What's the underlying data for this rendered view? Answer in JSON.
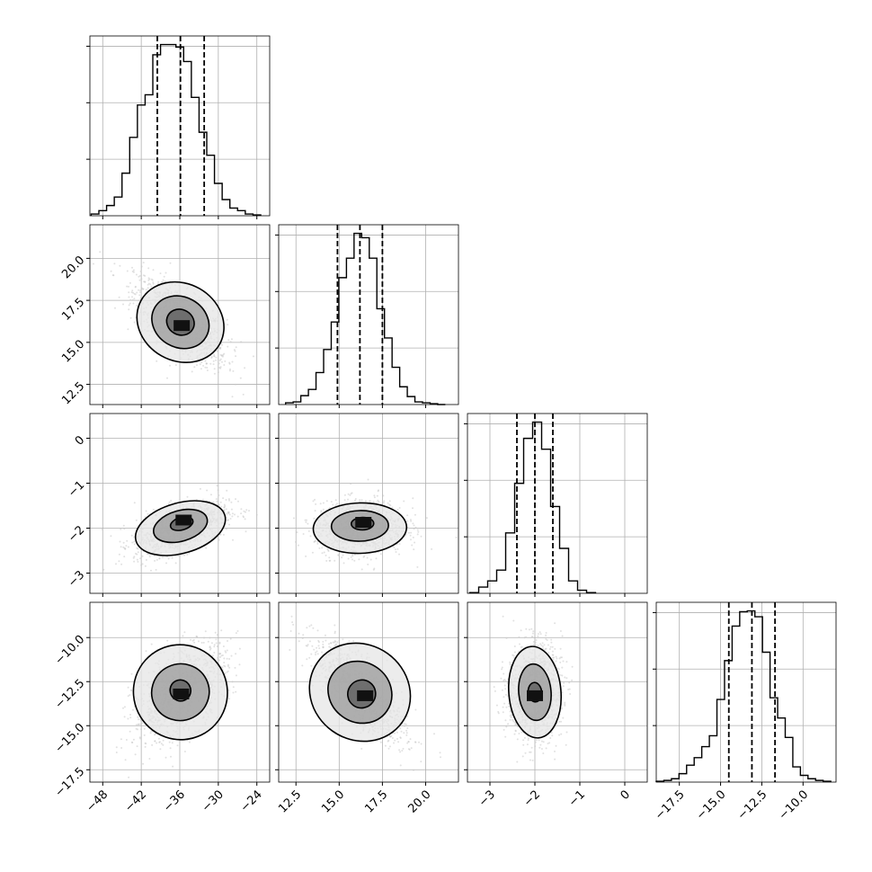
{
  "chart_data": {
    "type": "corner",
    "grid": true,
    "colors": {
      "line": "#000000",
      "grid": "#b0b0b0",
      "scatter": "#c8c8c8"
    },
    "parameters": [
      {
        "ticks": [
          -48,
          -42,
          -36,
          -30,
          -24
        ],
        "tick_labels": [
          "−48",
          "−42",
          "−36",
          "−30",
          "−24"
        ],
        "range": [
          -50,
          -22
        ],
        "quantiles": [
          -39.5,
          -35.9,
          -32.2
        ],
        "histogram": {
          "edges": [
            -49.8,
            -48.6,
            -47.4,
            -46.2,
            -45.0,
            -43.8,
            -42.6,
            -41.4,
            -40.2,
            -39.0,
            -37.8,
            -36.6,
            -35.4,
            -34.2,
            -33.0,
            -31.8,
            -30.6,
            -29.4,
            -28.2,
            -27.0,
            -25.8,
            -24.6,
            -23.4
          ],
          "counts": [
            2,
            6,
            12,
            22,
            50,
            92,
            130,
            142,
            189,
            201,
            201,
            198,
            181,
            139,
            98,
            71,
            38,
            19,
            9,
            6,
            2,
            1
          ]
        }
      },
      {
        "ticks": [
          12.5,
          15.0,
          17.5,
          20.0
        ],
        "tick_labels": [
          "12.5",
          "15.0",
          "17.5",
          "20.0"
        ],
        "range": [
          11.5,
          21.9
        ],
        "quantiles": [
          14.9,
          16.2,
          17.5
        ],
        "histogram": {
          "edges": [
            11.9,
            12.34,
            12.78,
            13.22,
            13.66,
            14.1,
            14.54,
            14.98,
            15.42,
            15.86,
            16.3,
            16.74,
            17.18,
            17.62,
            18.06,
            18.5,
            18.94,
            19.38,
            19.82,
            20.26,
            20.7,
            21.14
          ],
          "counts": [
            2,
            3,
            10,
            17,
            36,
            62,
            93,
            143,
            165,
            193,
            188,
            165,
            108,
            75,
            42,
            20,
            9,
            3,
            2,
            1,
            0
          ]
        }
      },
      {
        "ticks": [
          -3,
          -2,
          -1,
          0
        ],
        "tick_labels": [
          "−3",
          "−2",
          "−1",
          "0"
        ],
        "range": [
          -3.5,
          0.5
        ],
        "quantiles": [
          -2.4,
          -2.0,
          -1.6
        ],
        "histogram": {
          "edges": [
            -3.45,
            -3.25,
            -3.05,
            -2.85,
            -2.65,
            -2.45,
            -2.25,
            -2.05,
            -1.85,
            -1.65,
            -1.45,
            -1.25,
            -1.05,
            -0.85,
            -0.65
          ],
          "counts": [
            1,
            8,
            16,
            30,
            78,
            142,
            200,
            221,
            186,
            112,
            58,
            16,
            4,
            1
          ]
        }
      },
      {
        "ticks": [
          -17.5,
          -15.0,
          -12.5,
          -10.0
        ],
        "tick_labels": [
          "−17.5",
          "−15.0",
          "−12.5",
          "−10.0"
        ],
        "range": [
          -18.9,
          -8.0
        ],
        "quantiles": [
          -14.5,
          -13.1,
          -11.7
        ],
        "histogram": {
          "edges": [
            -18.9,
            -18.44,
            -17.98,
            -17.52,
            -17.06,
            -16.6,
            -16.14,
            -15.68,
            -15.22,
            -14.76,
            -14.3,
            -13.84,
            -13.38,
            -12.92,
            -12.46,
            -12.0,
            -11.54,
            -11.08,
            -10.62,
            -10.16,
            -9.7,
            -9.24,
            -8.78,
            -8.32
          ],
          "counts": [
            1,
            2,
            4,
            10,
            20,
            29,
            42,
            55,
            98,
            144,
            185,
            202,
            203,
            196,
            154,
            100,
            76,
            53,
            18,
            8,
            4,
            2,
            1
          ]
        }
      }
    ],
    "row_ranges": {
      "1": [
        11.3,
        22.0
      ],
      "2": [
        -3.45,
        0.55
      ],
      "3": [
        -18.2,
        -8.0
      ]
    },
    "pairs": [
      {
        "x": 0,
        "y": 1,
        "mean": [
          -35.9,
          16.2
        ],
        "sd": [
          3.6,
          1.3
        ],
        "rho": -0.68,
        "density_peak": [
          -35.7,
          16.0
        ],
        "levels": [
          {
            "center": [
              -35.9,
              16.2
            ],
            "rx": 2.2,
            "ry": 0.75
          },
          {
            "center": [
              -35.9,
              16.2
            ],
            "rx": 4.6,
            "ry": 1.5
          },
          {
            "center": [
              -35.9,
              16.2
            ],
            "rx": 7.0,
            "ry": 2.3
          }
        ]
      },
      {
        "x": 0,
        "y": 2,
        "mean": [
          -35.9,
          -2.0
        ],
        "sd": [
          3.6,
          0.3
        ],
        "rho": 0.55,
        "density_peak": [
          -35.4,
          -1.82
        ],
        "levels": [
          {
            "center": [
              -35.7,
              -1.9
            ],
            "rx": 1.8,
            "ry": 0.14
          },
          {
            "center": [
              -35.9,
              -1.95
            ],
            "rx": 4.3,
            "ry": 0.34
          },
          {
            "center": [
              -35.9,
              -2.0
            ],
            "rx": 7.2,
            "ry": 0.56
          }
        ]
      },
      {
        "x": 1,
        "y": 2,
        "mean": [
          16.2,
          -2.0
        ],
        "sd": [
          1.3,
          0.3
        ],
        "rho": 0.05,
        "density_peak": [
          16.4,
          -1.87
        ],
        "levels": [
          {
            "center": [
              16.35,
              -1.9
            ],
            "rx": 0.65,
            "ry": 0.14
          },
          {
            "center": [
              16.2,
              -1.95
            ],
            "rx": 1.65,
            "ry": 0.34
          },
          {
            "center": [
              16.2,
              -2.0
            ],
            "rx": 2.7,
            "ry": 0.56
          }
        ]
      },
      {
        "x": 0,
        "y": 3,
        "mean": [
          -35.9,
          -13.1
        ],
        "sd": [
          3.6,
          1.4
        ],
        "rho": 0.52,
        "density_peak": [
          -35.8,
          -13.2
        ],
        "levels": [
          {
            "center": [
              -35.9,
              -13.0
            ],
            "rx": 1.6,
            "ry": 0.6
          },
          {
            "center": [
              -35.9,
              -13.1
            ],
            "rx": 4.5,
            "ry": 1.6
          },
          {
            "center": [
              -35.9,
              -13.1
            ],
            "rx": 7.3,
            "ry": 2.7
          }
        ]
      },
      {
        "x": 1,
        "y": 3,
        "mean": [
          16.2,
          -13.1
        ],
        "sd": [
          1.3,
          1.4
        ],
        "rho": -0.75,
        "density_peak": [
          16.5,
          -13.3
        ],
        "levels": [
          {
            "center": [
              16.3,
              -13.2
            ],
            "rx": 0.8,
            "ry": 0.8
          },
          {
            "center": [
              16.2,
              -13.1
            ],
            "rx": 1.9,
            "ry": 1.7
          },
          {
            "center": [
              16.2,
              -13.1
            ],
            "rx": 3.0,
            "ry": 2.7
          }
        ]
      },
      {
        "x": 2,
        "y": 3,
        "mean": [
          -2.0,
          -13.1
        ],
        "sd": [
          0.3,
          1.4
        ],
        "rho": 0.05,
        "density_peak": [
          -2.0,
          -13.3
        ],
        "levels": [
          {
            "center": [
              -2.0,
              -13.1
            ],
            "rx": 0.15,
            "ry": 0.55
          },
          {
            "center": [
              -2.0,
              -13.1
            ],
            "rx": 0.36,
            "ry": 1.6
          },
          {
            "center": [
              -2.0,
              -13.1
            ],
            "rx": 0.58,
            "ry": 2.6
          }
        ]
      }
    ]
  }
}
